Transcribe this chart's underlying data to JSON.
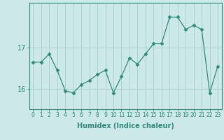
{
  "x": [
    0,
    1,
    2,
    3,
    4,
    5,
    6,
    7,
    8,
    9,
    10,
    11,
    12,
    13,
    14,
    15,
    16,
    17,
    18,
    19,
    20,
    21,
    22,
    23
  ],
  "y": [
    16.65,
    16.65,
    16.85,
    16.45,
    15.95,
    15.9,
    16.1,
    16.2,
    16.35,
    16.45,
    15.9,
    16.3,
    16.75,
    16.6,
    16.85,
    17.1,
    17.1,
    17.75,
    17.75,
    17.45,
    17.55,
    17.45,
    15.9,
    16.55
  ],
  "xlabel": "Humidex (Indice chaleur)",
  "ylabel": "",
  "yticks": [
    16,
    17
  ],
  "ylim": [
    15.5,
    18.1
  ],
  "xlim": [
    -0.5,
    23.5
  ],
  "line_color": "#2e8b7a",
  "marker_color": "#2e8b7a",
  "bg_color": "#cce8e8",
  "grid_color": "#aad0d0",
  "axis_color": "#2e8b7a",
  "font_color": "#2e8b7a",
  "xtick_fontsize": 5.5,
  "ytick_fontsize": 7,
  "xlabel_fontsize": 7
}
